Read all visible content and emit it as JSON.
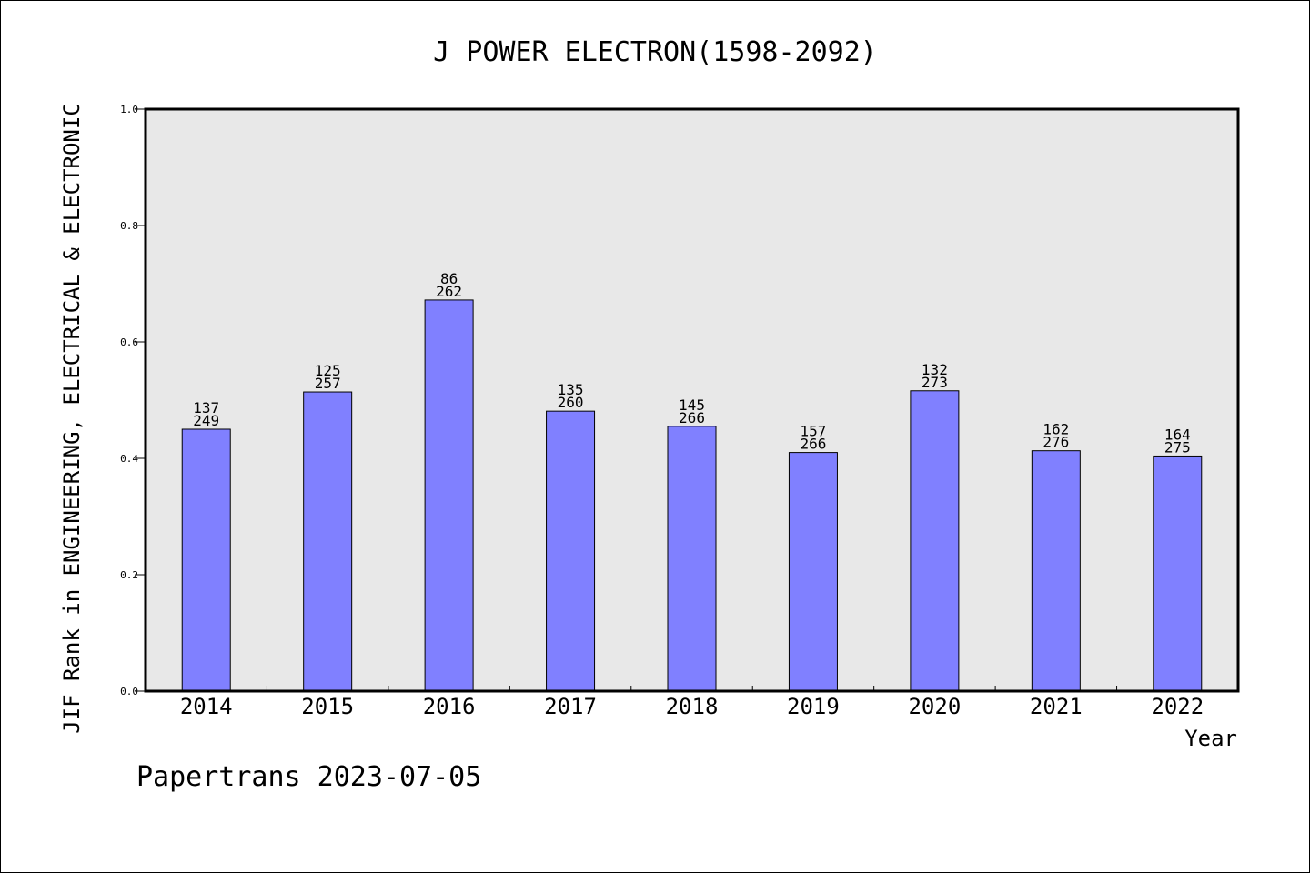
{
  "chart_data": {
    "type": "bar",
    "title": "J POWER ELECTRON(1598-2092)",
    "xlabel": "Year",
    "ylabel": "JIF Rank in ENGINEERING, ELECTRICAL & ELECTRONIC",
    "ylim": [
      0,
      1.0
    ],
    "yticks": [
      "0.0",
      "0.2",
      "0.4",
      "0.6",
      "0.8",
      "1.0"
    ],
    "categories": [
      "2014",
      "2015",
      "2016",
      "2017",
      "2018",
      "2019",
      "2020",
      "2021",
      "2022"
    ],
    "values": [
      0.45,
      0.514,
      0.672,
      0.481,
      0.455,
      0.41,
      0.516,
      0.413,
      0.404
    ],
    "label_top": [
      "137",
      "125",
      "86",
      "135",
      "145",
      "157",
      "132",
      "162",
      "164"
    ],
    "label_bottom": [
      "249",
      "257",
      "262",
      "260",
      "266",
      "266",
      "273",
      "276",
      "275"
    ],
    "grid": false,
    "colors": {
      "bar": "#8080ff",
      "plot_bg": "#e8e8e8"
    }
  },
  "footer": {
    "credit": "Papertrans 2023-07-05"
  }
}
